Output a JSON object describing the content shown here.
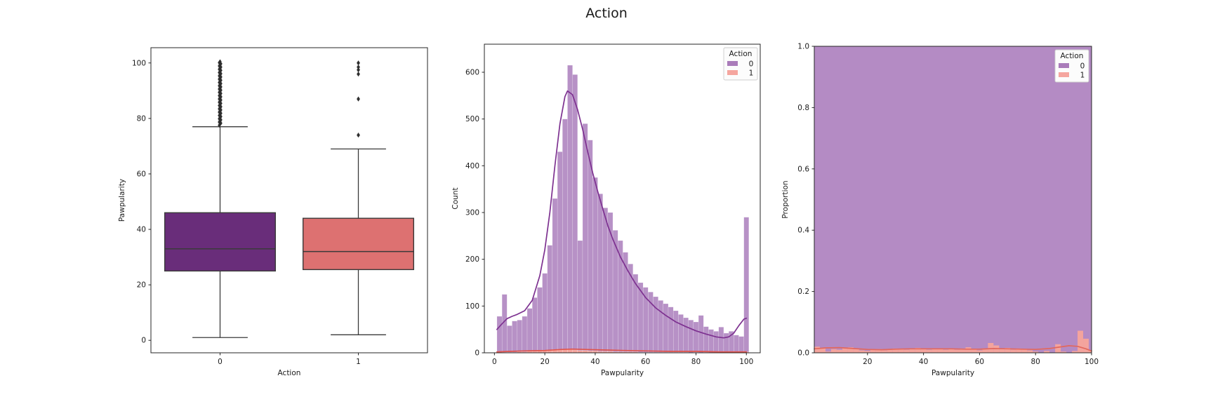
{
  "figure": {
    "title": "Action",
    "background": "#ffffff"
  },
  "palette": {
    "box_purple": "#692d7a",
    "box_salmon": "#dd7171",
    "hist_purple": "#b791c6",
    "hist_purple_solid": "#b48bc4",
    "hist_salmon": "#f4a49d",
    "kde_purple": "#7d3190",
    "kde_red": "#e0544a",
    "prop_line_red": "#e2685e",
    "edge": "#3a3a3a",
    "flier": "#2e2e2e",
    "spine": "#262626",
    "text": "#1a1a1a",
    "legend_bg": "#fcfcfc",
    "legend_border": "#cccccc"
  },
  "legend": {
    "title": "Action",
    "entries": [
      {
        "label": "0",
        "color": "#aa7cba"
      },
      {
        "label": "1",
        "color": "#f5a69f"
      }
    ]
  },
  "chart_data": [
    {
      "type": "boxplot",
      "name": "pawpularity-by-action-boxplot",
      "xlabel": "Action",
      "ylabel": "Pawpularity",
      "xlim": [
        -0.5,
        1.5
      ],
      "ylim": [
        -4.5,
        105.5
      ],
      "xticks": [
        [
          0,
          "0"
        ],
        [
          1,
          "1"
        ]
      ],
      "yticks": [
        [
          0,
          "0"
        ],
        [
          20,
          "20"
        ],
        [
          40,
          "40"
        ],
        [
          60,
          "60"
        ],
        [
          80,
          "80"
        ],
        [
          100,
          "100"
        ]
      ],
      "box_width": 0.8,
      "boxes": [
        {
          "category": "0",
          "color_key": "box_purple",
          "whislo": 1,
          "q1": 25,
          "med": 33,
          "q3": 46,
          "whishi": 77,
          "fliers_dense_range": [
            77.5,
            100.5
          ],
          "fliers": []
        },
        {
          "category": "1",
          "color_key": "box_salmon",
          "whislo": 2,
          "q1": 25.5,
          "med": 32,
          "q3": 44,
          "whishi": 69,
          "fliers": [
            74,
            87,
            96,
            97.5,
            98.5,
            100
          ]
        }
      ]
    },
    {
      "type": "bar",
      "name": "pawpularity-count-histogram",
      "xlabel": "Pawpularity",
      "ylabel": "Count",
      "xlim": [
        -4,
        105.5
      ],
      "ylim": [
        0,
        660
      ],
      "xticks": [
        [
          0,
          "0"
        ],
        [
          20,
          "20"
        ],
        [
          40,
          "40"
        ],
        [
          60,
          "60"
        ],
        [
          80,
          "80"
        ],
        [
          100,
          "100"
        ]
      ],
      "yticks": [
        [
          0,
          "0"
        ],
        [
          100,
          "100"
        ],
        [
          200,
          "200"
        ],
        [
          300,
          "300"
        ],
        [
          400,
          "400"
        ],
        [
          500,
          "500"
        ],
        [
          600,
          "600"
        ]
      ],
      "bin_start": 1,
      "bin_width": 2,
      "legend_visible": true,
      "series": [
        {
          "name": "0",
          "color_key": "hist_purple",
          "counts": [
            78,
            125,
            58,
            68,
            70,
            78,
            95,
            118,
            140,
            170,
            230,
            330,
            430,
            500,
            615,
            595,
            240,
            490,
            455,
            375,
            340,
            310,
            300,
            262,
            240,
            215,
            190,
            168,
            150,
            140,
            130,
            120,
            112,
            105,
            98,
            90,
            82,
            75,
            70,
            66,
            80,
            56,
            50,
            46,
            55,
            42,
            46,
            38,
            35,
            290
          ]
        },
        {
          "name": "1",
          "color_key": "hist_salmon",
          "counts": [
            2,
            1,
            1,
            1,
            2,
            2,
            3,
            3,
            4,
            5,
            6,
            7,
            8,
            8,
            7,
            6,
            5,
            5,
            4,
            4,
            3,
            3,
            3,
            2,
            2,
            2,
            2,
            2,
            1,
            1,
            1,
            1,
            1,
            1,
            1,
            1,
            1,
            1,
            0,
            1,
            0,
            1,
            0,
            0,
            1,
            0,
            0,
            1,
            0,
            2
          ]
        }
      ],
      "kde": [
        {
          "name": "0",
          "color_key": "kde_purple",
          "points": [
            [
              1,
              50
            ],
            [
              3,
              62
            ],
            [
              5,
              73
            ],
            [
              7,
              78
            ],
            [
              9,
              82
            ],
            [
              12,
              90
            ],
            [
              15,
              112
            ],
            [
              18,
              165
            ],
            [
              20,
              220
            ],
            [
              22,
              300
            ],
            [
              24,
              400
            ],
            [
              26,
              490
            ],
            [
              28,
              548
            ],
            [
              29,
              560
            ],
            [
              31,
              552
            ],
            [
              33,
              520
            ],
            [
              35,
              478
            ],
            [
              37,
              430
            ],
            [
              39,
              385
            ],
            [
              41,
              345
            ],
            [
              43,
              308
            ],
            [
              45,
              272
            ],
            [
              47,
              243
            ],
            [
              50,
              205
            ],
            [
              53,
              175
            ],
            [
              56,
              148
            ],
            [
              60,
              118
            ],
            [
              64,
              96
            ],
            [
              68,
              80
            ],
            [
              72,
              66
            ],
            [
              76,
              56
            ],
            [
              80,
              47
            ],
            [
              84,
              40
            ],
            [
              88,
              34
            ],
            [
              91,
              32
            ],
            [
              93,
              34
            ],
            [
              95,
              42
            ],
            [
              97,
              58
            ],
            [
              99,
              72
            ],
            [
              100,
              74
            ]
          ]
        },
        {
          "name": "1",
          "color_key": "kde_red",
          "points": [
            [
              1,
              2
            ],
            [
              6,
              3
            ],
            [
              12,
              4
            ],
            [
              20,
              5
            ],
            [
              26,
              7
            ],
            [
              31,
              8
            ],
            [
              37,
              7
            ],
            [
              44,
              6
            ],
            [
              52,
              5
            ],
            [
              60,
              4
            ],
            [
              70,
              3
            ],
            [
              80,
              3
            ],
            [
              90,
              2
            ],
            [
              100,
              2
            ]
          ]
        }
      ]
    },
    {
      "type": "area",
      "name": "pawpularity-proportion-fill",
      "xlabel": "Pawpularity",
      "ylabel": "Proportion",
      "xlim": [
        1,
        100
      ],
      "ylim": [
        0,
        1
      ],
      "xticks": [
        [
          20,
          "20"
        ],
        [
          40,
          "40"
        ],
        [
          60,
          "60"
        ],
        [
          80,
          "80"
        ],
        [
          100,
          "100"
        ]
      ],
      "yticks": [
        [
          0,
          "0.0"
        ],
        [
          0.2,
          "0.2"
        ],
        [
          0.4,
          "0.4"
        ],
        [
          0.6,
          "0.6"
        ],
        [
          0.8,
          "0.8"
        ],
        [
          1,
          "1.0"
        ]
      ],
      "bin_start": 1,
      "bin_width": 2,
      "legend_visible": true,
      "fill_series_0": {
        "name": "0",
        "color_key": "hist_purple_solid",
        "proportion": "remainder-to-1.0"
      },
      "fill_series_1": {
        "name": "1",
        "color_key": "hist_salmon",
        "proportions": [
          0.02,
          0.016,
          0.004,
          0.012,
          0.01,
          0.015,
          0.018,
          0.012,
          0.008,
          0.006,
          0.01,
          0.012,
          0.008,
          0.012,
          0.014,
          0.012,
          0.01,
          0.012,
          0.016,
          0.012,
          0.01,
          0.012,
          0.014,
          0.01,
          0.012,
          0.01,
          0.014,
          0.018,
          0.012,
          0.008,
          0.014,
          0.032,
          0.024,
          0.012,
          0.016,
          0.01,
          0.014,
          0.012,
          0.008,
          0.004,
          0,
          0.006,
          0,
          0.028,
          0.004,
          0,
          0.006,
          0.072,
          0.046,
          0.008
        ]
      },
      "line_1": {
        "color_key": "prop_line_red",
        "points": [
          [
            1,
            0.013
          ],
          [
            5,
            0.016
          ],
          [
            10,
            0.017
          ],
          [
            15,
            0.014
          ],
          [
            20,
            0.011
          ],
          [
            25,
            0.01
          ],
          [
            30,
            0.012
          ],
          [
            35,
            0.013
          ],
          [
            40,
            0.013
          ],
          [
            45,
            0.013
          ],
          [
            50,
            0.013
          ],
          [
            55,
            0.012
          ],
          [
            60,
            0.012
          ],
          [
            65,
            0.014
          ],
          [
            70,
            0.013
          ],
          [
            75,
            0.012
          ],
          [
            80,
            0.011
          ],
          [
            85,
            0.014
          ],
          [
            88,
            0.018
          ],
          [
            92,
            0.023
          ],
          [
            95,
            0.021
          ],
          [
            98,
            0.013
          ],
          [
            100,
            0.006
          ]
        ]
      }
    }
  ]
}
